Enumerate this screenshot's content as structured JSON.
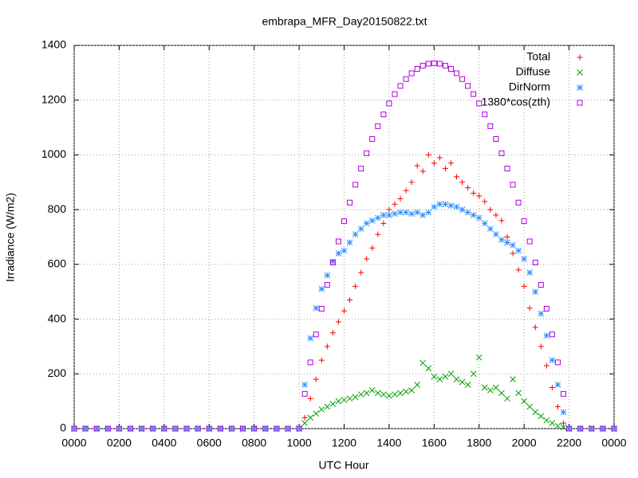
{
  "chart_data": {
    "type": "scatter",
    "title": "embrapa_MFR_Day20150822.txt",
    "x_label": "UTC Hour",
    "y_label": "Irradiance (W/m2)",
    "x": [
      0,
      0.5,
      1,
      1.5,
      2,
      2.5,
      3,
      3.5,
      4,
      4.5,
      5,
      5.5,
      6,
      6.5,
      7,
      7.5,
      8,
      8.5,
      9,
      9.5,
      10,
      10.25,
      10.5,
      10.75,
      11,
      11.25,
      11.5,
      11.75,
      12,
      12.25,
      12.5,
      12.75,
      13,
      13.25,
      13.5,
      13.75,
      14,
      14.25,
      14.5,
      14.75,
      15,
      15.25,
      15.5,
      15.75,
      16,
      16.25,
      16.5,
      16.75,
      17,
      17.25,
      17.5,
      17.75,
      18,
      18.25,
      18.5,
      18.75,
      19,
      19.25,
      19.5,
      19.75,
      20,
      20.25,
      20.5,
      20.75,
      21,
      21.25,
      21.5,
      21.75,
      22,
      22.5,
      23,
      23.5,
      24
    ],
    "series": [
      {
        "name": "Total",
        "color": "#ff0000",
        "marker": "plus",
        "values": [
          0,
          0,
          0,
          0,
          0,
          0,
          0,
          0,
          0,
          0,
          0,
          0,
          0,
          0,
          0,
          0,
          0,
          0,
          0,
          0,
          0,
          40,
          110,
          180,
          250,
          300,
          350,
          390,
          430,
          470,
          520,
          570,
          620,
          660,
          710,
          750,
          800,
          820,
          840,
          870,
          900,
          960,
          940,
          1000,
          970,
          990,
          950,
          970,
          920,
          900,
          880,
          860,
          850,
          830,
          800,
          780,
          760,
          700,
          640,
          580,
          520,
          440,
          370,
          300,
          230,
          150,
          80,
          20,
          0,
          0,
          0,
          0,
          0
        ]
      },
      {
        "name": "Diffuse",
        "color": "#00a000",
        "marker": "cross",
        "values": [
          0,
          0,
          0,
          0,
          0,
          0,
          0,
          0,
          0,
          0,
          0,
          0,
          0,
          0,
          0,
          0,
          0,
          0,
          0,
          0,
          0,
          20,
          40,
          55,
          70,
          80,
          90,
          100,
          105,
          110,
          115,
          125,
          130,
          140,
          130,
          125,
          120,
          125,
          130,
          135,
          140,
          160,
          240,
          220,
          190,
          180,
          190,
          200,
          180,
          170,
          160,
          200,
          260,
          150,
          140,
          150,
          130,
          110,
          180,
          130,
          100,
          80,
          60,
          45,
          30,
          20,
          10,
          5,
          0,
          0,
          0,
          0,
          0
        ]
      },
      {
        "name": "DirNorm",
        "color": "#3090ff",
        "marker": "star",
        "values": [
          0,
          0,
          0,
          0,
          0,
          0,
          0,
          0,
          0,
          0,
          0,
          0,
          0,
          0,
          0,
          0,
          0,
          0,
          0,
          0,
          0,
          160,
          330,
          440,
          510,
          560,
          610,
          640,
          650,
          680,
          710,
          730,
          750,
          760,
          770,
          780,
          780,
          785,
          790,
          790,
          785,
          790,
          780,
          790,
          810,
          820,
          820,
          815,
          810,
          800,
          790,
          780,
          770,
          750,
          730,
          710,
          690,
          680,
          670,
          650,
          620,
          570,
          500,
          420,
          340,
          250,
          160,
          60,
          0,
          0,
          0,
          0,
          0
        ]
      },
      {
        "name": "1380*cos(zth)",
        "color": "#b000e0",
        "marker": "square",
        "values": [
          0,
          0,
          0,
          0,
          0,
          0,
          0,
          0,
          0,
          0,
          0,
          0,
          0,
          0,
          0,
          0,
          0,
          0,
          0,
          0,
          0,
          127,
          242,
          344,
          438,
          525,
          607,
          684,
          758,
          826,
          891,
          950,
          1006,
          1058,
          1105,
          1148,
          1188,
          1222,
          1252,
          1277,
          1298,
          1314,
          1326,
          1333,
          1335,
          1333,
          1326,
          1314,
          1298,
          1277,
          1252,
          1222,
          1188,
          1148,
          1105,
          1058,
          1006,
          950,
          891,
          826,
          758,
          684,
          607,
          525,
          438,
          344,
          242,
          127,
          0,
          0,
          0,
          0,
          0
        ]
      }
    ],
    "xlim": [
      0,
      24
    ],
    "xticks": [
      {
        "value": 0,
        "label": "0000"
      },
      {
        "value": 2,
        "label": "0200"
      },
      {
        "value": 4,
        "label": "0400"
      },
      {
        "value": 6,
        "label": "0600"
      },
      {
        "value": 8,
        "label": "0800"
      },
      {
        "value": 10,
        "label": "1000"
      },
      {
        "value": 12,
        "label": "1200"
      },
      {
        "value": 14,
        "label": "1400"
      },
      {
        "value": 16,
        "label": "1600"
      },
      {
        "value": 18,
        "label": "1800"
      },
      {
        "value": 20,
        "label": "2000"
      },
      {
        "value": 22,
        "label": "2200"
      },
      {
        "value": 24,
        "label": "0000"
      }
    ],
    "ylim": [
      0,
      1400
    ],
    "yticks": [
      0,
      200,
      400,
      600,
      800,
      1000,
      1200,
      1400
    ],
    "grid": true,
    "legend": "top-right"
  }
}
